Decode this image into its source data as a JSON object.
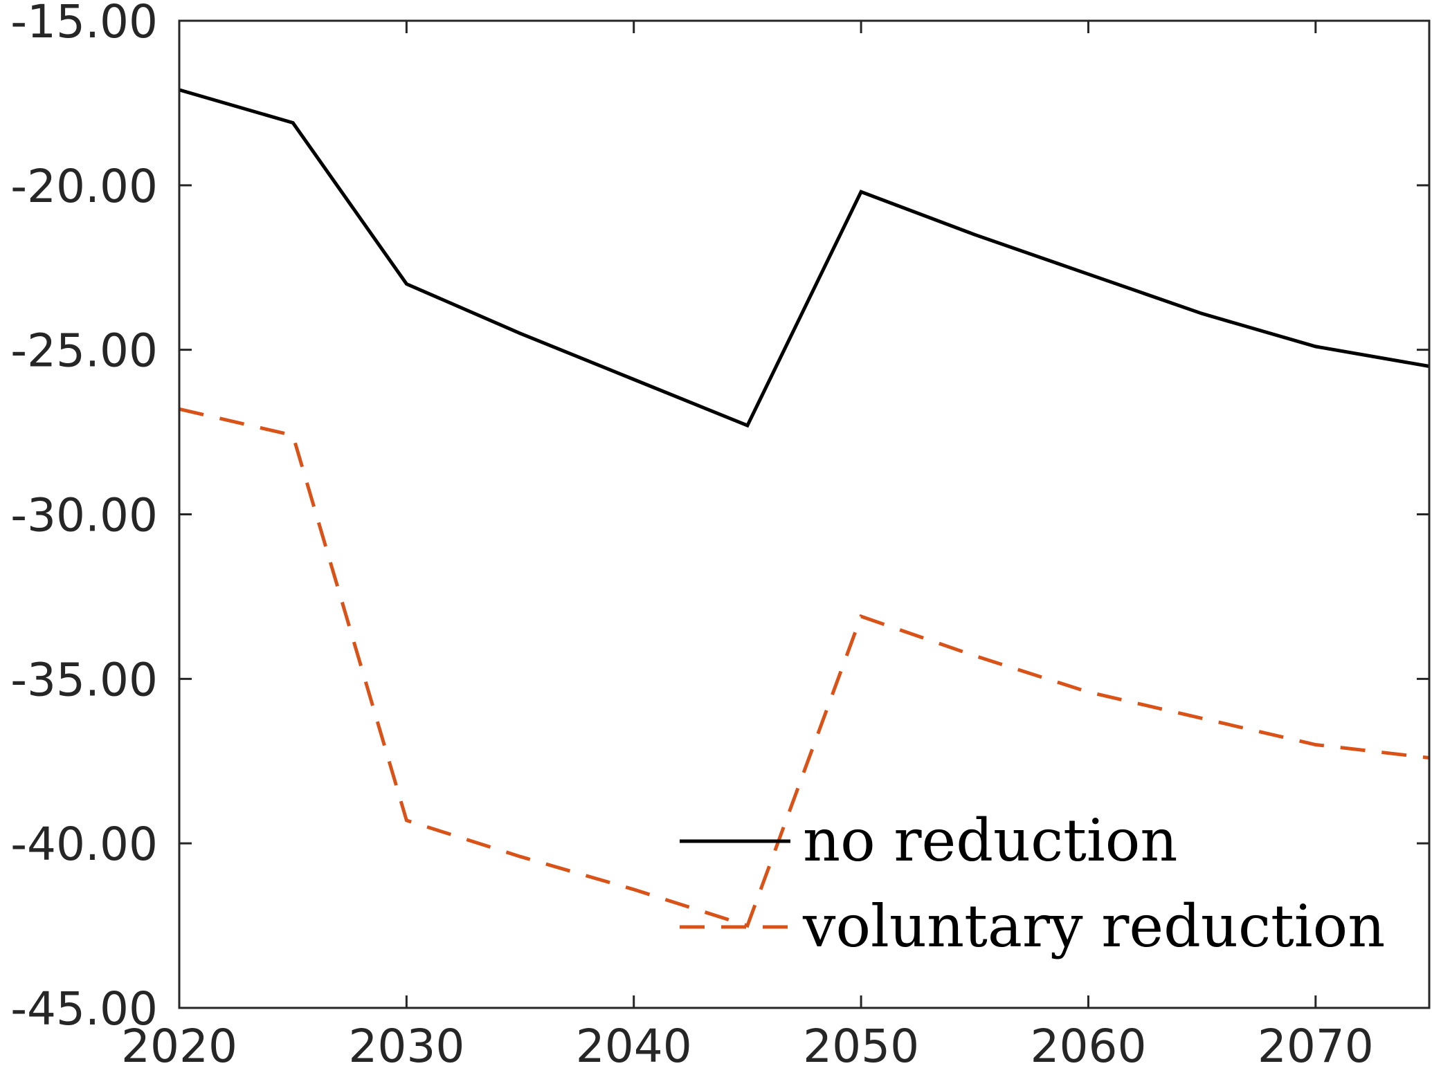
{
  "chart_data": {
    "type": "line",
    "title": "",
    "xlabel": "",
    "ylabel": "",
    "xlim": [
      2020,
      2075
    ],
    "ylim": [
      -45,
      -15
    ],
    "x_ticks": [
      2020,
      2030,
      2040,
      2050,
      2060,
      2070
    ],
    "x_tick_labels": [
      "2020",
      "2030",
      "2040",
      "2050",
      "2060",
      "2070"
    ],
    "y_ticks": [
      -15,
      -20,
      -25,
      -30,
      -35,
      -40,
      -45
    ],
    "y_tick_labels": [
      "-15.00",
      "-20.00",
      "-25.00",
      "-30.00",
      "-35.00",
      "-40.00",
      "-45.00"
    ],
    "grid": false,
    "legend_position": "bottom-right",
    "x": [
      2020,
      2025,
      2030,
      2035,
      2040,
      2045,
      2050,
      2055,
      2060,
      2065,
      2070,
      2075
    ],
    "series": [
      {
        "name": "no reduction",
        "style": "solid",
        "color": "#000000",
        "values": [
          -17.1,
          -18.1,
          -23.0,
          -24.5,
          -25.9,
          -27.3,
          -20.2,
          -21.5,
          -22.7,
          -23.9,
          -24.9,
          -25.5
        ]
      },
      {
        "name": "voluntary reduction",
        "style": "dashed",
        "color": "#D95319",
        "values": [
          -26.8,
          -27.6,
          -39.3,
          -40.4,
          -41.4,
          -42.5,
          -33.1,
          -34.3,
          -35.4,
          -36.2,
          -37.0,
          -37.4
        ]
      }
    ]
  }
}
